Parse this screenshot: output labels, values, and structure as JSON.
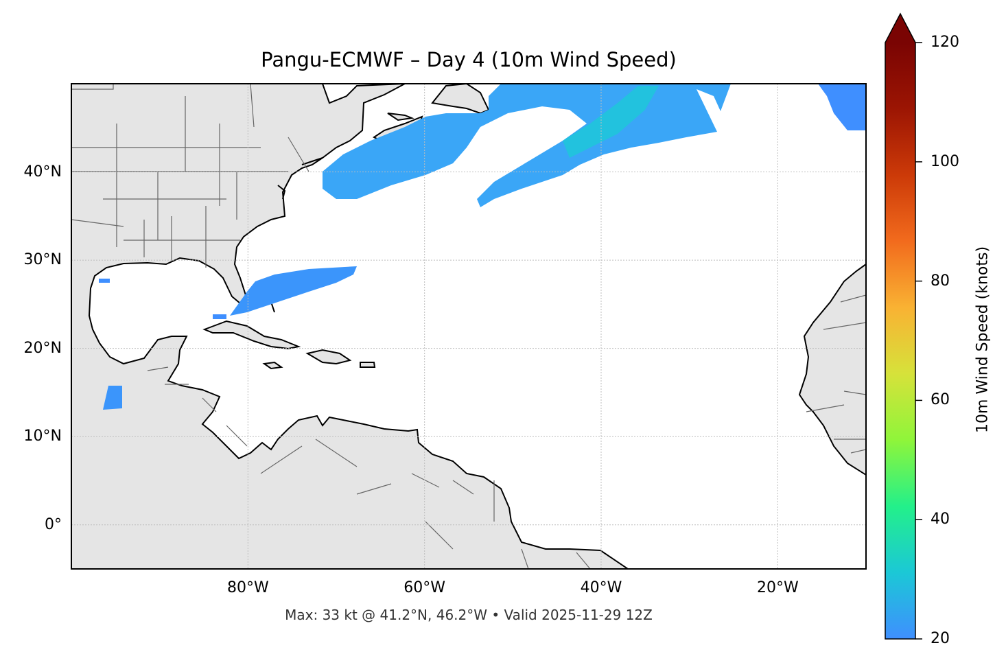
{
  "title": "Pangu-ECMWF – Day 4 (10m Wind Speed)",
  "footer": "Max: 33 kt @ 41.2°N, 46.2°W • Valid 2025-11-29 12Z",
  "map": {
    "extent": {
      "lon": [
        -100,
        -10
      ],
      "lat": [
        -5,
        50
      ]
    },
    "lat_ticks": [
      {
        "value": 40,
        "label": "40°N"
      },
      {
        "value": 30,
        "label": "30°N"
      },
      {
        "value": 20,
        "label": "20°N"
      },
      {
        "value": 10,
        "label": "10°N"
      },
      {
        "value": 0,
        "label": "0°"
      }
    ],
    "lon_ticks": [
      {
        "value": -80,
        "label": "80°W"
      },
      {
        "value": -60,
        "label": "60°W"
      },
      {
        "value": -40,
        "label": "40°W"
      },
      {
        "value": -20,
        "label": "20°W"
      }
    ],
    "grid": true,
    "colors": {
      "land": "#e5e5e5",
      "coast": "#000000",
      "border": "#666666",
      "grid": "#bdbdbd"
    }
  },
  "colorbar": {
    "label": "10m Wind Speed (knots)",
    "min": 20,
    "max": 120,
    "extend": "max",
    "ticks": [
      {
        "value": 20,
        "label": "20"
      },
      {
        "value": 40,
        "label": "40"
      },
      {
        "value": 60,
        "label": "60"
      },
      {
        "value": 80,
        "label": "80"
      },
      {
        "value": 100,
        "label": "100"
      },
      {
        "value": 120,
        "label": "120"
      }
    ],
    "stops": [
      "#3f8fff",
      "#1bc8d6",
      "#23f08a",
      "#8ff53a",
      "#d6e23a",
      "#f9b233",
      "#f26b1d",
      "#cc3a08",
      "#9c1503",
      "#7a0403"
    ]
  }
}
